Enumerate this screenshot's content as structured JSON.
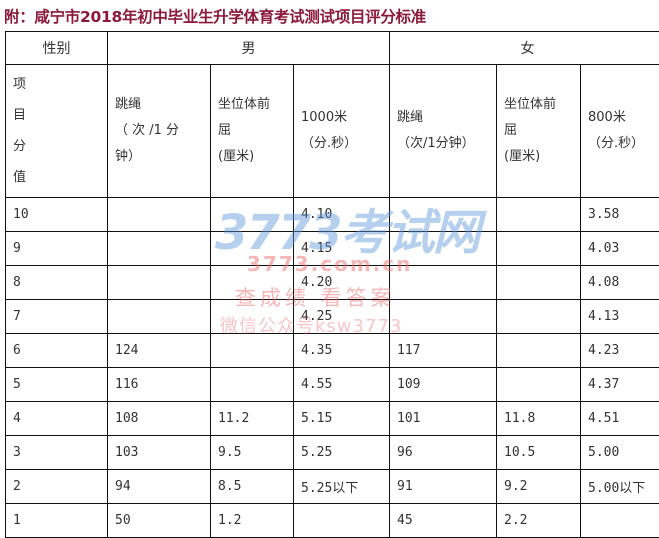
{
  "title": "附：咸宁市2018年初中毕业生升学体育考试测试项目评分标准",
  "header": {
    "gender": "性别",
    "male": "男",
    "female": "女",
    "item_score": [
      "项",
      "目",
      "分",
      "值"
    ],
    "male_rope": [
      "跳绳",
      "（ 次 /1 分",
      "钟）"
    ],
    "male_sit": [
      "坐位体前",
      "屈",
      "(厘米)"
    ],
    "male_run": [
      "1000米",
      "（分.秒）"
    ],
    "female_rope": [
      "跳绳",
      "（次/1分钟）"
    ],
    "female_sit": [
      "坐位体前",
      "屈",
      "(厘米)"
    ],
    "female_run": [
      "800米",
      "（分.秒）"
    ]
  },
  "rows": [
    [
      "10",
      "",
      "",
      "4.10",
      "",
      "",
      "3.58"
    ],
    [
      "9",
      "",
      "",
      "4.15",
      "",
      "",
      "4.03"
    ],
    [
      "8",
      "",
      "",
      "4.20",
      "",
      "",
      "4.08"
    ],
    [
      "7",
      "",
      "",
      "4.25",
      "",
      "",
      "4.13"
    ],
    [
      "6",
      "124",
      "",
      "4.35",
      "117",
      "",
      "4.23"
    ],
    [
      "5",
      "116",
      "",
      "4.55",
      "109",
      "",
      "4.37"
    ],
    [
      "4",
      "108",
      "11.2",
      "5.15",
      "101",
      "11.8",
      "4.51"
    ],
    [
      "3",
      "103",
      "9.5",
      "5.25",
      "96",
      "10.5",
      "5.00"
    ],
    [
      "2",
      "94",
      "8.5",
      "5.25以下",
      "91",
      "9.2",
      "5.00以下"
    ],
    [
      "1",
      "50",
      "1.2",
      "",
      "45",
      "2.2",
      ""
    ]
  ],
  "watermark": {
    "logo": "3773考试网",
    "url": "3773.com.cn",
    "slogan": "查成绩 看答案",
    "wechat": "微信公众号ksw3773"
  }
}
